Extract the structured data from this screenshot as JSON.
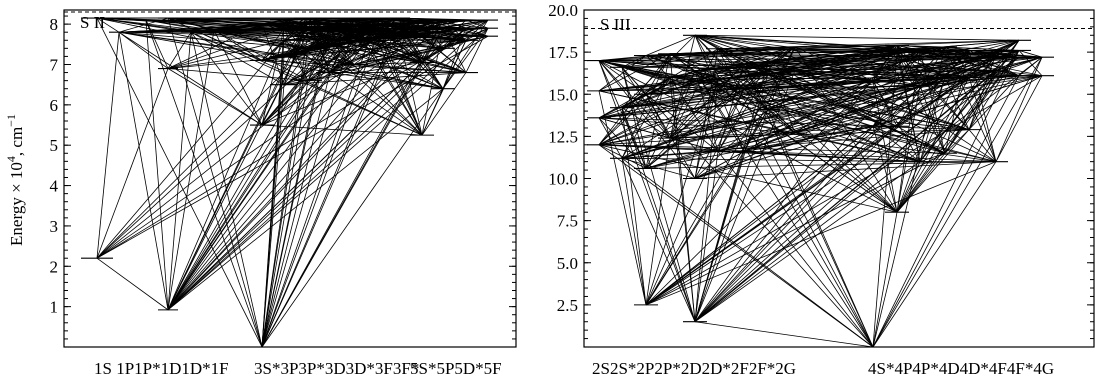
{
  "chart_data": [
    {
      "type": "diagram",
      "ion": "S II",
      "ylabel": "Energy × 10",
      "ylabel_sup": "4",
      "ylabel_unit": ", cm",
      "ylabel_unit_sup": "−1",
      "ylim": [
        0,
        8.35
      ],
      "yticks": [
        "1",
        "2",
        "3",
        "4",
        "5",
        "6",
        "7",
        "8"
      ],
      "ionization_limit": 8.3,
      "group_labels": [
        "1S 1P1P*1D1D*1F",
        "3S*3P3P*3D3D*3F3F*",
        "5S*5P5D*5F"
      ],
      "columns": [
        "1S",
        "1P",
        "1P*",
        "1D",
        "1D*",
        "1F",
        "3S*",
        "3P",
        "3P*",
        "3D",
        "3D*",
        "3F",
        "3F*",
        "5S*",
        "5P",
        "5D*",
        "5F"
      ],
      "levels": {
        "1S": [
          2.2,
          8.15
        ],
        "1P": [
          7.8
        ],
        "1P*": [
          8.1
        ],
        "1D": [
          0.92,
          6.9,
          8.15
        ],
        "1D*": [
          7.8
        ],
        "1F": [
          7.85
        ],
        "3S*": [
          0.0,
          5.5,
          7.1,
          8.0
        ],
        "3P": [
          6.5,
          7.2,
          7.6,
          7.9,
          8.1
        ],
        "3P*": [
          6.6,
          7.4,
          7.8,
          8.05,
          8.15
        ],
        "3D": [
          6.8,
          7.5,
          7.9,
          8.1
        ],
        "3D*": [
          7.0,
          7.6,
          7.95,
          8.1
        ],
        "3F": [
          7.65,
          7.9,
          8.1
        ],
        "3F*": [
          7.8,
          8.0,
          8.15
        ],
        "5S*": [
          5.25,
          7.05,
          7.7,
          8.1
        ],
        "5P": [
          6.4,
          7.4,
          7.9,
          8.1
        ],
        "5D*": [
          6.8,
          7.6,
          7.9,
          8.1
        ],
        "5F": [
          7.7,
          7.9,
          8.1
        ]
      }
    },
    {
      "type": "diagram",
      "ion": "S III",
      "ylim": [
        0,
        20.0
      ],
      "yticks": [
        "2.5",
        "5.0",
        "7.5",
        "10.0",
        "12.5",
        "15.0",
        "17.5",
        "20.0"
      ],
      "ionization_limit": 18.9,
      "group_labels": [
        "2S2S*2P2P*2D2D*2F2F*2G",
        "4S*4P4P*4D4D*4F4F*4G"
      ],
      "columns": [
        "2S",
        "2S*",
        "2P",
        "2P*",
        "2D",
        "2D*",
        "2F",
        "2F*",
        "2G",
        "4S*",
        "4P",
        "4P*",
        "4D",
        "4D*",
        "4F",
        "4F*",
        "4G"
      ],
      "levels": {
        "2S": [
          12.0,
          13.6,
          15.2,
          17.0
        ],
        "2S*": [
          11.2,
          14.2,
          16.6
        ],
        "2P": [
          2.5,
          10.6,
          15.0,
          17.3
        ],
        "2P*": [
          12.4,
          16.0,
          17.4
        ],
        "2D": [
          1.5,
          10.0,
          16.4,
          18.5
        ],
        "2D*": [
          11.6,
          15.9,
          17.7
        ],
        "2F": [
          11.6,
          15.3,
          16.8
        ],
        "2F*": [
          14.1,
          16.2,
          16.9
        ],
        "2G": [
          12.7,
          16.4,
          17.8
        ],
        "4S*": [
          0.0,
          13.1,
          15.8
        ],
        "4P": [
          8.0,
          13.1,
          17.5,
          17.9
        ],
        "4P*": [
          11.0,
          15.5,
          17.6
        ],
        "4D": [
          11.5,
          16.0,
          17.8
        ],
        "4D*": [
          12.9,
          16.0,
          17.6
        ],
        "4F": [
          11.0,
          16.4,
          17.4
        ],
        "4F*": [
          16.1,
          17.2,
          17.6,
          18.2
        ],
        "4G": [
          16.1,
          17.2
        ]
      }
    }
  ]
}
